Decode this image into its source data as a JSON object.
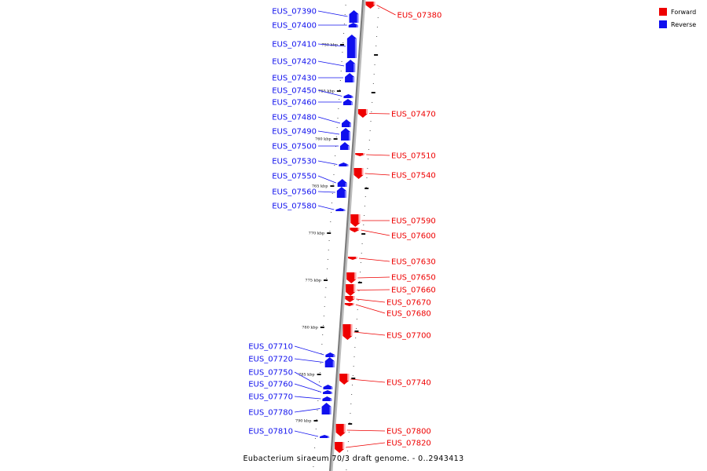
{
  "legend": {
    "forward_label": "Forward",
    "reverse_label": "Reverse",
    "forward_color": "#ee0000",
    "reverse_color": "#1010ee"
  },
  "caption": "Eubacterium siraeum 70/3 draft genome. - 0..2943413",
  "kbp_marks": [
    "750 kbp",
    "755 kbp",
    "760 kbp",
    "765 kbp",
    "770 kbp",
    "775 kbp",
    "780 kbp",
    "785 kbp",
    "790 kbp"
  ],
  "genes": [
    {
      "label": "EUS_07390",
      "strand": "reverse"
    },
    {
      "label": "EUS_07400",
      "strand": "reverse"
    },
    {
      "label": "EUS_07410",
      "strand": "reverse"
    },
    {
      "label": "EUS_07420",
      "strand": "reverse"
    },
    {
      "label": "EUS_07430",
      "strand": "reverse"
    },
    {
      "label": "EUS_07450",
      "strand": "reverse"
    },
    {
      "label": "EUS_07460",
      "strand": "reverse"
    },
    {
      "label": "EUS_07480",
      "strand": "reverse"
    },
    {
      "label": "EUS_07490",
      "strand": "reverse"
    },
    {
      "label": "EUS_07500",
      "strand": "reverse"
    },
    {
      "label": "EUS_07530",
      "strand": "reverse"
    },
    {
      "label": "EUS_07550",
      "strand": "reverse"
    },
    {
      "label": "EUS_07560",
      "strand": "reverse"
    },
    {
      "label": "EUS_07580",
      "strand": "reverse"
    },
    {
      "label": "EUS_07710",
      "strand": "reverse"
    },
    {
      "label": "EUS_07720",
      "strand": "reverse"
    },
    {
      "label": "EUS_07750",
      "strand": "reverse"
    },
    {
      "label": "EUS_07760",
      "strand": "reverse"
    },
    {
      "label": "EUS_07770",
      "strand": "reverse"
    },
    {
      "label": "EUS_07780",
      "strand": "reverse"
    },
    {
      "label": "EUS_07810",
      "strand": "reverse"
    },
    {
      "label": "EUS_07380",
      "strand": "forward"
    },
    {
      "label": "EUS_07470",
      "strand": "forward"
    },
    {
      "label": "EUS_07510",
      "strand": "forward"
    },
    {
      "label": "EUS_07540",
      "strand": "forward"
    },
    {
      "label": "EUS_07590",
      "strand": "forward"
    },
    {
      "label": "EUS_07600",
      "strand": "forward"
    },
    {
      "label": "EUS_07630",
      "strand": "forward"
    },
    {
      "label": "EUS_07650",
      "strand": "forward"
    },
    {
      "label": "EUS_07660",
      "strand": "forward"
    },
    {
      "label": "EUS_07670",
      "strand": "forward"
    },
    {
      "label": "EUS_07680",
      "strand": "forward"
    },
    {
      "label": "EUS_07700",
      "strand": "forward"
    },
    {
      "label": "EUS_07740",
      "strand": "forward"
    },
    {
      "label": "EUS_07800",
      "strand": "forward"
    },
    {
      "label": "EUS_07820",
      "strand": "forward"
    }
  ]
}
